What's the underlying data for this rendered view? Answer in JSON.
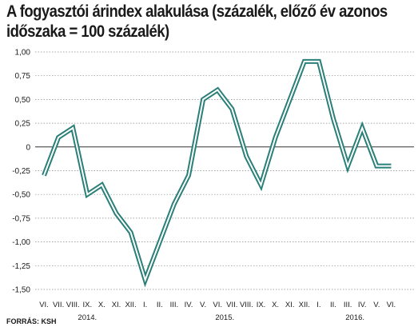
{
  "title": "A fogyasztói árindex alakulása (százalék, előző év azonos időszaka = 100 százalék)",
  "source": "FORRÁS: KSH",
  "colors": {
    "line": "#2a7f78",
    "grid": "#8a8a8a",
    "zero": "#333333",
    "text": "#1a1a1a"
  },
  "chart_data": {
    "type": "line",
    "title": "A fogyasztói árindex alakulása (százalék, előző év azonos időszaka = 100 százalék)",
    "xlabel": "",
    "ylabel": "",
    "ylim": [
      -1.5,
      1.0
    ],
    "yticks": [
      1.0,
      0.75,
      0.5,
      0.25,
      0,
      -0.25,
      -0.5,
      -0.75,
      -1.0,
      -1.25,
      -1.5
    ],
    "ytick_labels": [
      "1,00",
      "0,75",
      "0,50",
      "0,25",
      "0",
      "-0,25",
      "-0,50",
      "-0,75",
      "-1,00",
      "-1,25",
      "-1,50"
    ],
    "categories": [
      "VI.",
      "VII.",
      "VIII.",
      "IX.",
      "X.",
      "XI.",
      "XII.",
      "I.",
      "II.",
      "III.",
      "IV.",
      "V.",
      "VI.",
      "VII.",
      "VIII.",
      "IX.",
      "X.",
      "XI.",
      "XII.",
      "I.",
      "II.",
      "III.",
      "IV.",
      "V.",
      "VI."
    ],
    "year_labels": [
      {
        "label": "2014.",
        "start": 0,
        "end": 6
      },
      {
        "label": "2015.",
        "start": 7,
        "end": 18
      },
      {
        "label": "2016.",
        "start": 19,
        "end": 24
      }
    ],
    "series": [
      {
        "values": [
          -0.3,
          0.1,
          0.2,
          -0.5,
          -0.4,
          -0.7,
          -0.9,
          -1.4,
          -1.0,
          -0.6,
          -0.3,
          0.5,
          0.6,
          0.4,
          -0.1,
          -0.4,
          0.1,
          0.5,
          0.9,
          0.9,
          0.3,
          -0.2,
          0.2,
          -0.2,
          -0.2
        ]
      }
    ],
    "grid": true
  }
}
